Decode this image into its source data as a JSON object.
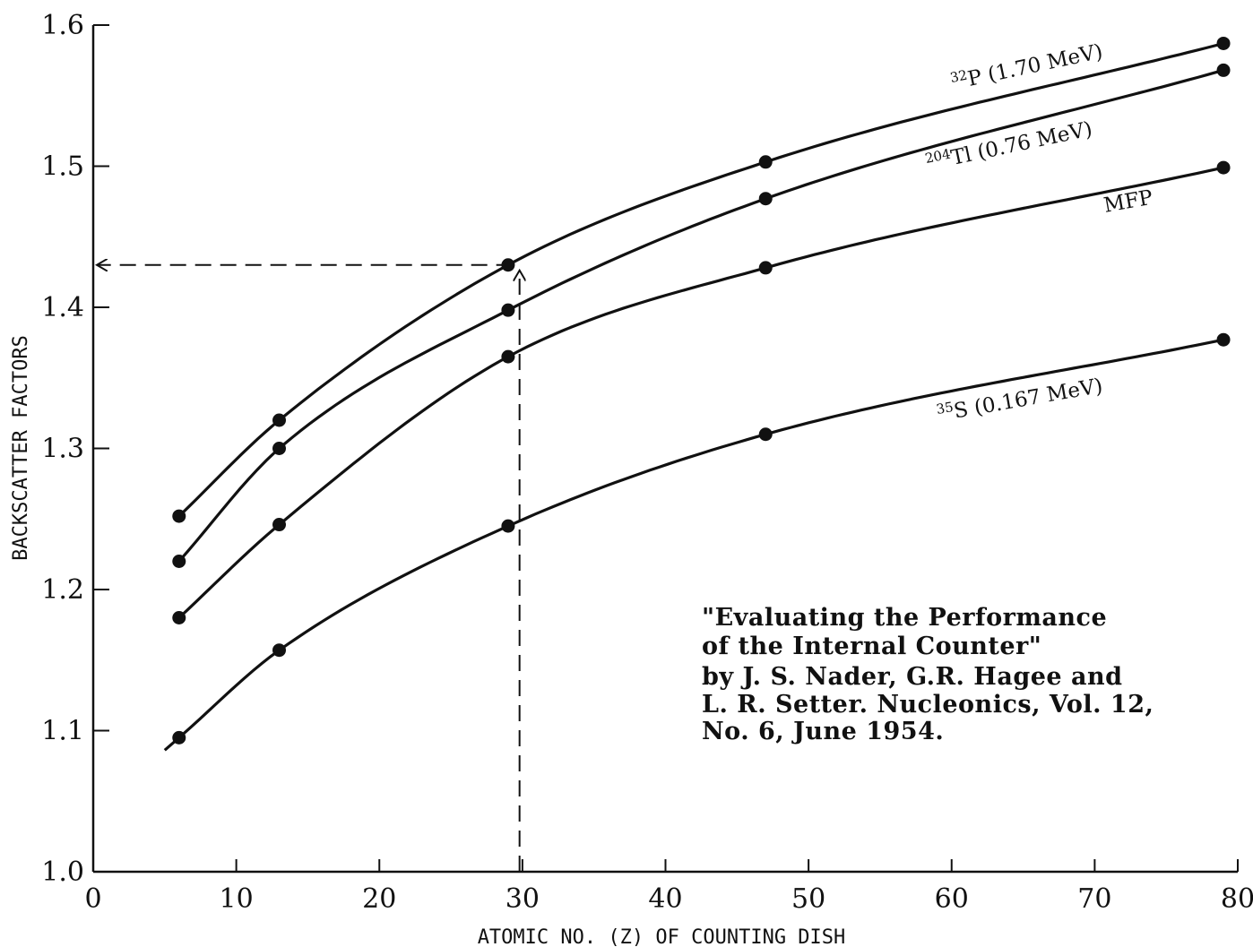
{
  "chart_data": {
    "type": "line",
    "xlabel": "ATOMIC NO. (Z) OF COUNTING DISH",
    "ylabel": "BACKSCATTER FACTORS",
    "xlim": [
      0,
      80
    ],
    "ylim": [
      1.0,
      1.6
    ],
    "xticks": [
      "0",
      "10",
      "20",
      "30",
      "40",
      "50",
      "60",
      "70",
      "80"
    ],
    "yticks": [
      "1.0",
      "1.1",
      "1.2",
      "1.3",
      "1.4",
      "1.5",
      "1.6"
    ],
    "grid": false,
    "series": [
      {
        "name": "P (1.70 MeV)",
        "isotope_mass": "32",
        "x": [
          6,
          13,
          29,
          47,
          79
        ],
        "y": [
          1.252,
          1.32,
          1.43,
          1.503,
          1.587
        ]
      },
      {
        "name": "Tl (0.76 MeV)",
        "isotope_mass": "204",
        "x": [
          6,
          13,
          29,
          47,
          79
        ],
        "y": [
          1.22,
          1.3,
          1.398,
          1.477,
          1.568
        ]
      },
      {
        "name": "MFP",
        "isotope_mass": "",
        "x": [
          6,
          13,
          29,
          47,
          79
        ],
        "y": [
          1.18,
          1.246,
          1.365,
          1.428,
          1.499
        ]
      },
      {
        "name": "S (0.167 MeV)",
        "isotope_mass": "35",
        "x": [
          6,
          13,
          29,
          47,
          79
        ],
        "y": [
          1.095,
          1.157,
          1.245,
          1.31,
          1.377
        ]
      }
    ],
    "reference_lines": {
      "x": 29.8,
      "y": 1.43
    },
    "annotation": [
      "\"Evaluating the Performance",
      "of the Internal Counter\"",
      "by J. S. Nader, G.R. Hagee and",
      "L. R. Setter. Nucleonics, Vol. 12,",
      "No. 6, June 1954."
    ]
  }
}
